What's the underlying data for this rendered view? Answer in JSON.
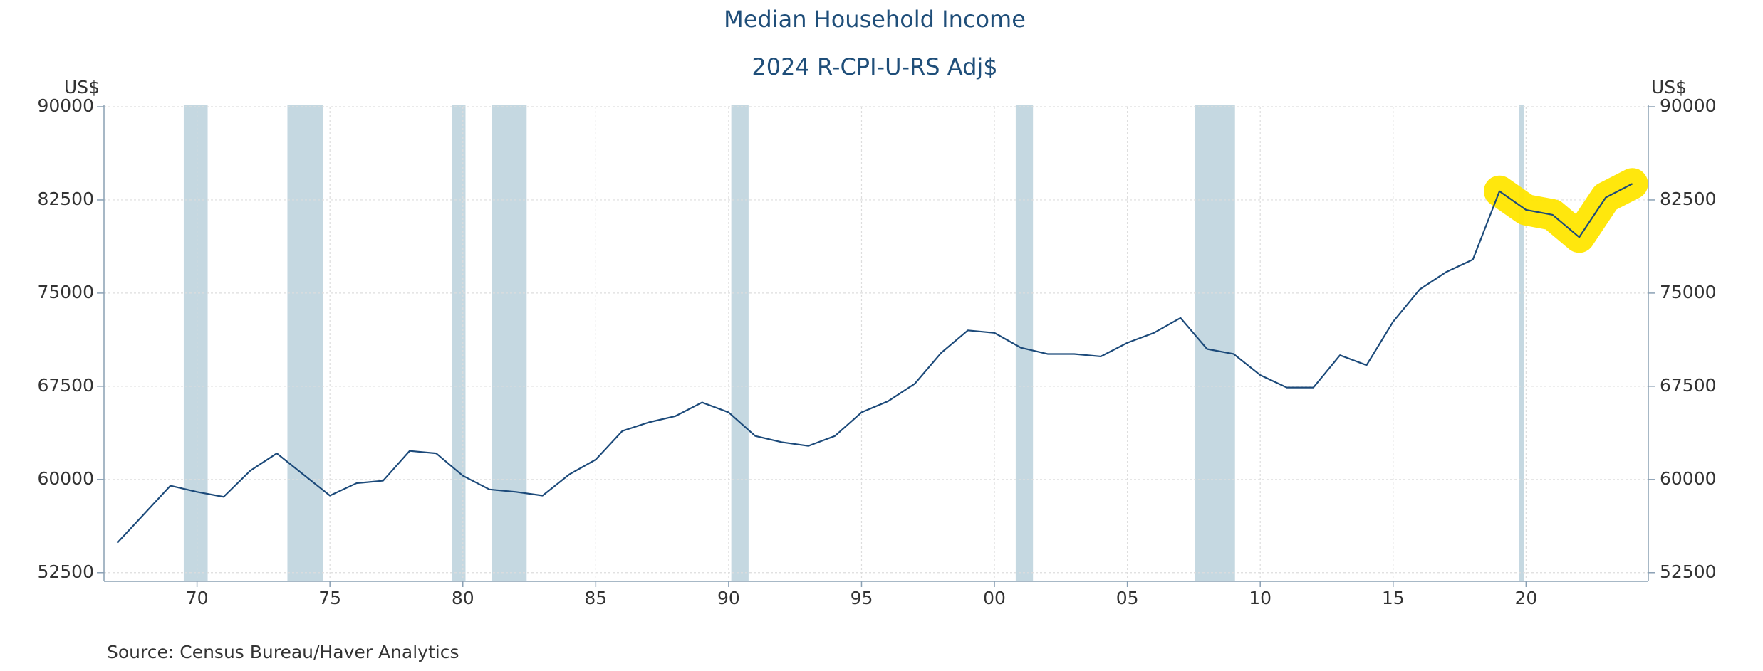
{
  "chart_data": {
    "type": "line",
    "title": "Median Household Income",
    "subtitle": "2024 R-CPI-U-RS Adj$",
    "y_label": "US$",
    "y2_label": "US$",
    "source": "Source:  Census Bureau/Haver Analytics",
    "x": [
      1967,
      1968,
      1969,
      1970,
      1971,
      1972,
      1973,
      1974,
      1975,
      1976,
      1977,
      1978,
      1979,
      1980,
      1981,
      1982,
      1983,
      1984,
      1985,
      1986,
      1987,
      1988,
      1989,
      1990,
      1991,
      1992,
      1993,
      1994,
      1995,
      1996,
      1997,
      1998,
      1999,
      2000,
      2001,
      2002,
      2003,
      2004,
      2005,
      2006,
      2007,
      2008,
      2009,
      2010,
      2011,
      2012,
      2013,
      2014,
      2015,
      2016,
      2017,
      2018,
      2019,
      2020,
      2021,
      2022,
      2023,
      2024
    ],
    "series": [
      {
        "color": "#1c4a7a",
        "values": [
          54900,
          57200,
          59500,
          59000,
          58600,
          60700,
          62100,
          60400,
          58700,
          59700,
          59900,
          62300,
          62100,
          60300,
          59200,
          59000,
          58700,
          60400,
          61600,
          63900,
          64600,
          65100,
          66200,
          65400,
          63500,
          63000,
          62700,
          63500,
          65400,
          66300,
          67700,
          70200,
          72000,
          71800,
          70600,
          70100,
          70100,
          69900,
          71000,
          71800,
          73000,
          70500,
          70100,
          68400,
          67400,
          67400,
          70000,
          69200,
          72700,
          75300,
          76700,
          77700,
          83200,
          81700,
          81300,
          79500,
          82700,
          83800
        ]
      }
    ],
    "recessions": [
      [
        1969.5,
        1970.4
      ],
      [
        1973.4,
        1974.75
      ],
      [
        1979.6,
        1980.1
      ],
      [
        1981.1,
        1982.4
      ],
      [
        1990.1,
        1990.75
      ],
      [
        2000.8,
        2001.45
      ],
      [
        2007.55,
        2009.05
      ],
      [
        2019.75,
        2019.92
      ]
    ],
    "recession_color": "#c5d8e1",
    "highlight": {
      "color": "#ffe600",
      "from": 2019,
      "to": 2024
    },
    "xlim": [
      1966.5,
      2024.6
    ],
    "xticks": [
      {
        "value": 1970,
        "label": "70"
      },
      {
        "value": 1975,
        "label": "75"
      },
      {
        "value": 1980,
        "label": "80"
      },
      {
        "value": 1985,
        "label": "85"
      },
      {
        "value": 1990,
        "label": "90"
      },
      {
        "value": 1995,
        "label": "95"
      },
      {
        "value": 2000,
        "label": "00"
      },
      {
        "value": 2005,
        "label": "05"
      },
      {
        "value": 2010,
        "label": "10"
      },
      {
        "value": 2015,
        "label": "15"
      },
      {
        "value": 2020,
        "label": "20"
      }
    ],
    "ylim": [
      51800,
      90000
    ],
    "yticks": [
      52500,
      60000,
      67500,
      75000,
      82500,
      90000
    ],
    "y2lim": [
      51800,
      90000
    ],
    "y2ticks": [
      52500,
      60000,
      67500,
      75000,
      82500,
      90000
    ],
    "grid": true
  }
}
